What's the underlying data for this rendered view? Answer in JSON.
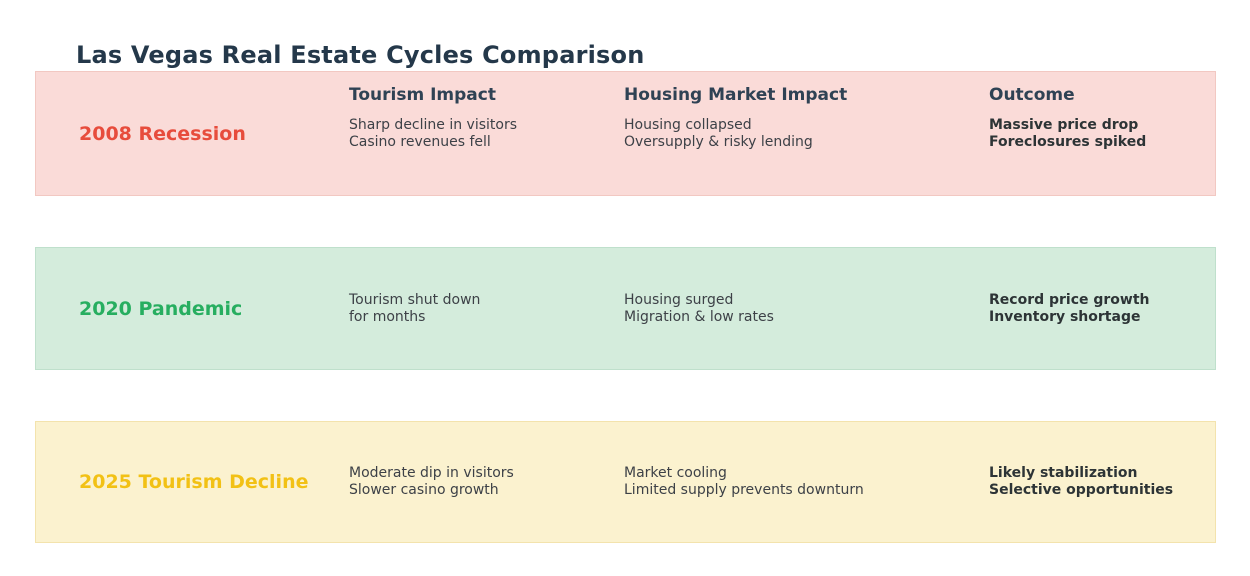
{
  "title": "Las Vegas Real Estate Cycles Comparison",
  "columns": [
    "Tourism Impact",
    "Housing Market Impact",
    "Outcome"
  ],
  "rows": [
    {
      "label": "2008 Recession",
      "tourism": "Sharp decline in visitors\nCasino revenues fell",
      "housing": "Housing collapsed\nOversupply & risky lending",
      "outcome": "Massive price drop\nForeclosures spiked",
      "colors": {
        "background": "#fadbd8",
        "border": "#f2c8c2",
        "label": "#e74c3c"
      }
    },
    {
      "label": "2020 Pandemic",
      "tourism": "Tourism shut down\nfor months",
      "housing": "Housing surged\nMigration & low rates",
      "outcome": "Record price growth\nInventory shortage",
      "colors": {
        "background": "#d4ecdc",
        "border": "#bfe0cc",
        "label": "#27ae60"
      }
    },
    {
      "label": "2025 Tourism Decline",
      "tourism": "Moderate dip in visitors\nSlower casino growth",
      "housing": "Market cooling\nLimited supply prevents downturn",
      "outcome": "Likely stabilization\nSelective opportunities",
      "colors": {
        "background": "#fbf2cf",
        "border": "#f3e3ad",
        "label": "#f2c115"
      }
    }
  ]
}
